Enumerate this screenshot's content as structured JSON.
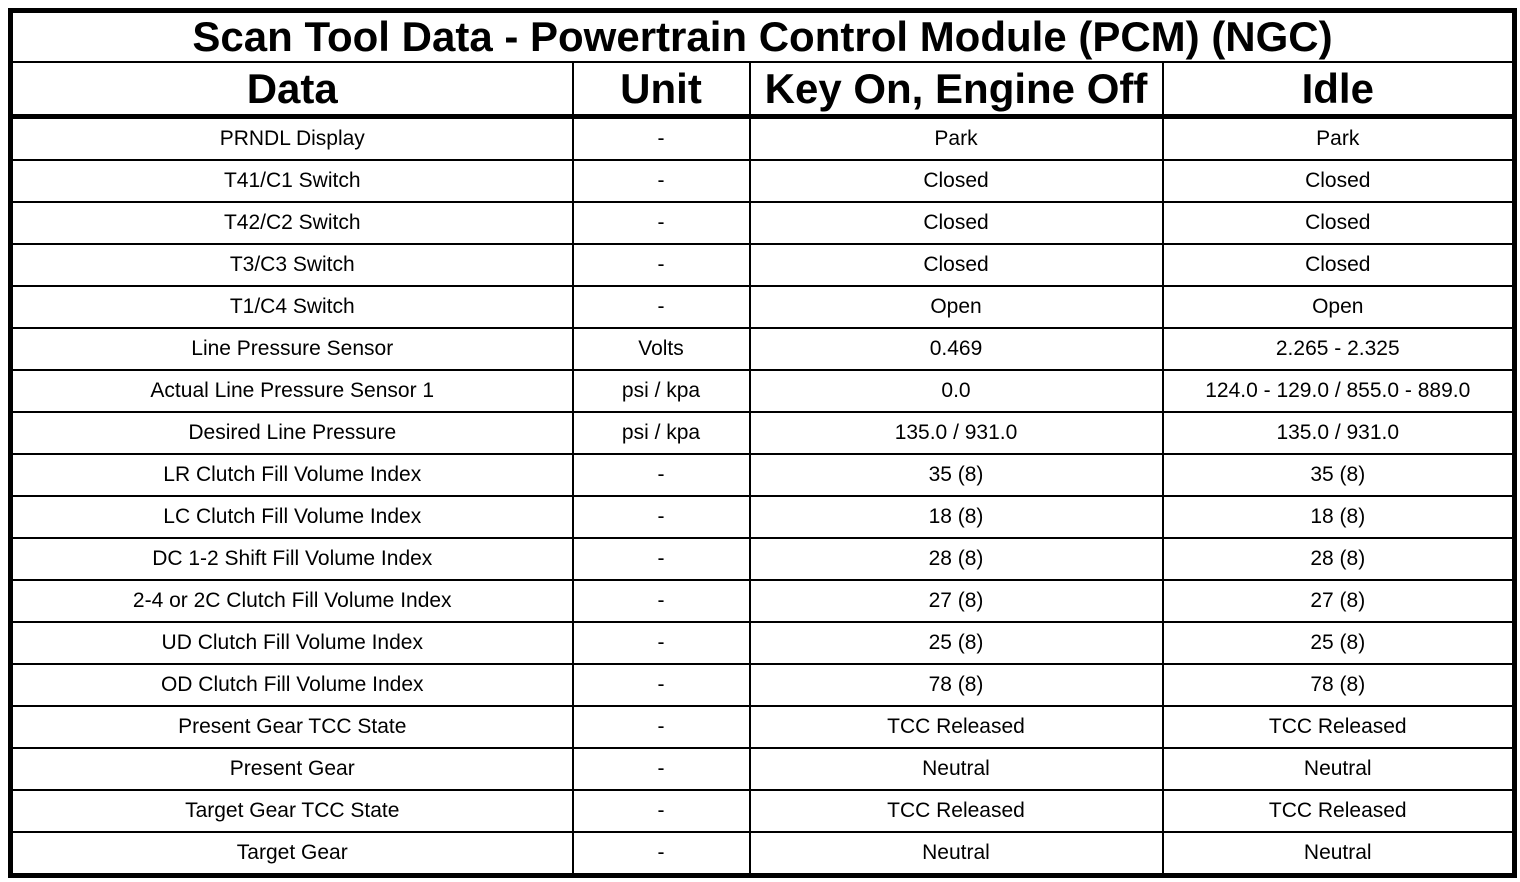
{
  "chart_data": {
    "type": "table",
    "title": "Scan Tool Data - Powertrain Control Module (PCM) (NGC)",
    "columns": [
      "Data",
      "Unit",
      "Key On, Engine Off",
      "Idle"
    ],
    "rows": [
      [
        "PRNDL Display",
        "-",
        "Park",
        "Park"
      ],
      [
        "T41/C1 Switch",
        "-",
        "Closed",
        "Closed"
      ],
      [
        "T42/C2 Switch",
        "-",
        "Closed",
        "Closed"
      ],
      [
        "T3/C3 Switch",
        "-",
        "Closed",
        "Closed"
      ],
      [
        "T1/C4 Switch",
        "-",
        "Open",
        "Open"
      ],
      [
        "Line Pressure Sensor",
        "Volts",
        "0.469",
        "2.265 - 2.325"
      ],
      [
        "Actual Line Pressure Sensor 1",
        "psi / kpa",
        "0.0",
        "124.0 - 129.0 / 855.0 - 889.0"
      ],
      [
        "Desired Line Pressure",
        "psi / kpa",
        "135.0 / 931.0",
        "135.0 / 931.0"
      ],
      [
        "LR Clutch Fill Volume Index",
        "-",
        "35 (8)",
        "35 (8)"
      ],
      [
        "LC Clutch Fill Volume Index",
        "-",
        "18 (8)",
        "18 (8)"
      ],
      [
        "DC 1-2 Shift Fill Volume Index",
        "-",
        "28 (8)",
        "28 (8)"
      ],
      [
        "2-4 or 2C Clutch Fill Volume Index",
        "-",
        "27 (8)",
        "27 (8)"
      ],
      [
        "UD Clutch Fill Volume Index",
        "-",
        "25 (8)",
        "25 (8)"
      ],
      [
        "OD Clutch Fill Volume Index",
        "-",
        "78 (8)",
        "78 (8)"
      ],
      [
        "Present Gear TCC State",
        "-",
        "TCC Released",
        "TCC Released"
      ],
      [
        "Present Gear",
        "-",
        "Neutral",
        "Neutral"
      ],
      [
        "Target Gear TCC State",
        "-",
        "TCC Released",
        "TCC Released"
      ],
      [
        "Target Gear",
        "-",
        "Neutral",
        "Neutral"
      ]
    ],
    "layout": {
      "grid": true,
      "text_align": "center",
      "title_position": "top-spanning-row",
      "header_row": true
    },
    "colors": {
      "border": "#000000",
      "background": "#ffffff",
      "text": "#000000"
    }
  }
}
